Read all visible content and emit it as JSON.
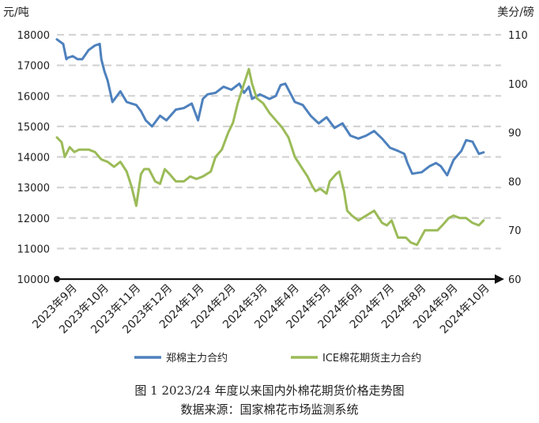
{
  "chart_data": {
    "type": "line",
    "left_axis": {
      "unit": "元/吨",
      "ylim": [
        10000,
        18000
      ],
      "ticks": [
        10000,
        11000,
        12000,
        13000,
        14000,
        15000,
        16000,
        17000,
        18000
      ]
    },
    "right_axis": {
      "unit": "美分/磅",
      "ylim": [
        60,
        110
      ],
      "ticks": [
        60,
        70,
        80,
        90,
        100,
        110
      ]
    },
    "grid": "horizontal-dashed",
    "legend_position": "bottom",
    "x_labels": [
      "2023年9月",
      "2023年10月",
      "2023年11月",
      "2023年12月",
      "2024年1月",
      "2024年2月",
      "2024年3月",
      "2024年4月",
      "2024年5月",
      "2024年6月",
      "2024年7月",
      "2024年8月",
      "2024年9月",
      "2024年10月"
    ],
    "series": [
      {
        "name": "郑棉主力合约",
        "axis": "left",
        "color": "#4E81BD",
        "x": [
          0.0,
          0.2,
          0.3,
          0.35,
          0.5,
          0.65,
          0.8,
          1.0,
          1.2,
          1.35,
          1.4,
          1.5,
          1.6,
          1.75,
          2.0,
          2.2,
          2.35,
          2.5,
          2.65,
          2.8,
          3.0,
          3.25,
          3.45,
          3.75,
          4.0,
          4.25,
          4.45,
          4.6,
          4.75,
          5.0,
          5.25,
          5.5,
          5.75,
          5.9,
          6.05,
          6.15,
          6.4,
          6.7,
          6.9,
          7.05,
          7.2,
          7.5,
          7.75,
          8.0,
          8.25,
          8.5,
          8.75,
          9.0,
          9.25,
          9.5,
          9.75,
          10.0,
          10.25,
          10.5,
          10.75,
          10.95,
          11.05,
          11.2,
          11.5,
          11.75,
          11.95,
          12.1,
          12.3,
          12.5,
          12.75,
          12.9,
          13.1,
          13.3,
          13.45
        ],
        "y": [
          17850,
          17700,
          17200,
          17250,
          17300,
          17200,
          17200,
          17500,
          17650,
          17700,
          17200,
          16800,
          16500,
          15800,
          16150,
          15800,
          15750,
          15700,
          15500,
          15200,
          15000,
          15350,
          15200,
          15550,
          15600,
          15750,
          15200,
          15900,
          16050,
          16100,
          16300,
          16200,
          16400,
          16100,
          16300,
          15900,
          16050,
          15900,
          16000,
          16350,
          16400,
          15800,
          15700,
          15350,
          15100,
          15300,
          14950,
          15100,
          14700,
          14600,
          14700,
          14850,
          14600,
          14300,
          14200,
          14100,
          13800,
          13450,
          13500,
          13700,
          13800,
          13700,
          13400,
          13900,
          14200,
          14550,
          14500,
          14100,
          14150
        ]
      },
      {
        "name": "ICE棉花期货主力合约",
        "axis": "right",
        "color": "#9BBB58",
        "x": [
          0.0,
          0.15,
          0.25,
          0.4,
          0.55,
          0.7,
          0.85,
          1.0,
          1.2,
          1.4,
          1.6,
          1.8,
          2.0,
          2.2,
          2.35,
          2.5,
          2.65,
          2.75,
          2.9,
          3.1,
          3.25,
          3.4,
          3.55,
          3.75,
          4.0,
          4.2,
          4.4,
          4.6,
          4.85,
          5.0,
          5.2,
          5.4,
          5.55,
          5.7,
          5.85,
          6.05,
          6.15,
          6.3,
          6.5,
          6.7,
          6.9,
          7.1,
          7.3,
          7.5,
          7.7,
          7.9,
          8.05,
          8.15,
          8.3,
          8.5,
          8.6,
          8.8,
          8.9,
          9.05,
          9.15,
          9.3,
          9.5,
          9.75,
          10.0,
          10.25,
          10.4,
          10.55,
          10.75,
          11.0,
          11.15,
          11.35,
          11.6,
          11.8,
          12.0,
          12.15,
          12.35,
          12.5,
          12.7,
          12.9,
          13.1,
          13.3,
          13.45
        ],
        "y": [
          89,
          88,
          85,
          87,
          86,
          86.5,
          86.5,
          86.5,
          86,
          84.5,
          84,
          83,
          84,
          82,
          79,
          75,
          81.5,
          82.5,
          82.5,
          80,
          79.5,
          82.5,
          81.5,
          80,
          80,
          81,
          80.5,
          81,
          82,
          85,
          86.5,
          90,
          92,
          96,
          99,
          103,
          100,
          97,
          96,
          94,
          92.5,
          91,
          89,
          85,
          83,
          81,
          79,
          78,
          78.5,
          77.5,
          80,
          81.5,
          82,
          78,
          74,
          73,
          72,
          73,
          74,
          71.5,
          71,
          72,
          68.5,
          68.5,
          67.5,
          67,
          70,
          70,
          70,
          71,
          72.5,
          73,
          72.5,
          72.5,
          71.5,
          71,
          72
        ]
      }
    ]
  },
  "caption": {
    "title": "图 1   2023/24 年度以来国内外棉花期货价格走势图",
    "source": "数据来源：国家棉花市场监测系统"
  }
}
